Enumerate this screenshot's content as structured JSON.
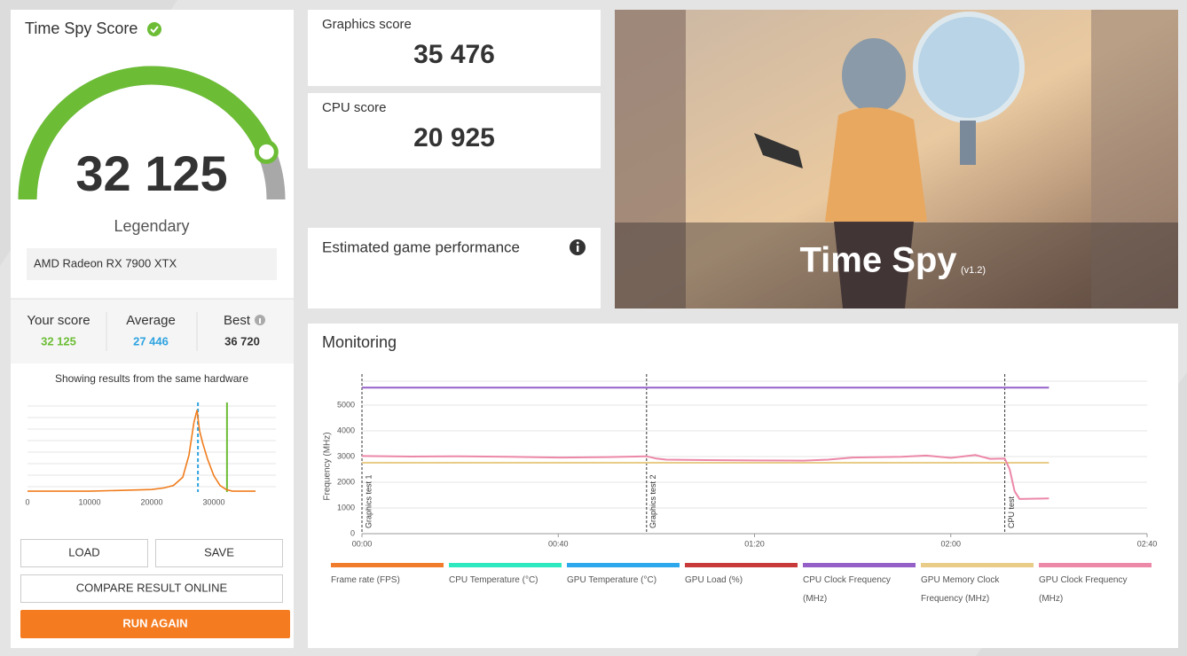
{
  "score_card": {
    "title": "Time Spy Score",
    "score": {
      "value": 32125,
      "label": "32 125"
    },
    "rank": "Legendary",
    "gpu": "AMD Radeon RX 7900 XTX"
  },
  "comparison": {
    "your_score": {
      "name": "Your score",
      "value": 32125,
      "label": "32 125"
    },
    "average": {
      "name": "Average",
      "value": 27446,
      "label": "27 446"
    },
    "best": {
      "name": "Best",
      "value": 36720,
      "label": "36 720"
    }
  },
  "distribution": {
    "type": "line",
    "caption": "Showing results from the same hardware",
    "x": [
      0,
      5000,
      10000,
      15000,
      20000,
      22000,
      23500,
      25000,
      26000,
      26800,
      27300,
      27700,
      28200,
      29000,
      30000,
      31000,
      32000,
      33000,
      36720
    ],
    "values": [
      1,
      1,
      1,
      2,
      3,
      5,
      8,
      18,
      45,
      85,
      100,
      75,
      60,
      40,
      20,
      8,
      3,
      1,
      1
    ],
    "color": "#f07c1c",
    "xlim": [
      0,
      40000
    ],
    "ylim": [
      0,
      105
    ],
    "xticks": [
      0,
      10000,
      20000,
      30000
    ]
  },
  "scores": {
    "graphics": {
      "name": "Graphics score",
      "label": "35 476"
    },
    "cpu": {
      "name": "CPU score",
      "label": "20 925"
    }
  },
  "estimated": {
    "title": "Estimated game performance"
  },
  "hero": {
    "title": "Time Spy",
    "version": "(v1.2)"
  },
  "buttons": {
    "load": "LOAD",
    "save": "SAVE",
    "compare": "COMPARE RESULT ONLINE",
    "run": "RUN AGAIN"
  },
  "monitoring": {
    "type": "line",
    "title": "Monitoring",
    "ylabel": "Frequency (MHz)",
    "xlim": [
      0,
      160
    ],
    "ylim": [
      0,
      5930
    ],
    "yticks": [
      0,
      1000,
      2000,
      3000,
      4000,
      5000
    ],
    "xticks": [
      {
        "value": 0,
        "label": "00:00"
      },
      {
        "value": 40,
        "label": "00:40"
      },
      {
        "value": 80,
        "label": "01:20"
      },
      {
        "value": 120,
        "label": "02:00"
      },
      {
        "value": 160,
        "label": "02:40"
      }
    ],
    "markers": [
      {
        "value": 0,
        "label": "Graphics test 1"
      },
      {
        "value": 58,
        "label": "Graphics test 2"
      },
      {
        "value": 131,
        "label": "CPU test"
      }
    ],
    "series": [
      {
        "name": "Frame rate (FPS)",
        "color": "#f07c2c"
      },
      {
        "name": "CPU Temperature (°C)",
        "color": "#2ee8c0"
      },
      {
        "name": "GPU Temperature (°C)",
        "color": "#2ea8ec"
      },
      {
        "name": "GPU Load (%)",
        "color": "#c83a3a"
      },
      {
        "name": "CPU Clock Frequency (MHz)",
        "color": "#9460c8",
        "x": [
          0,
          140
        ],
        "values": [
          5680,
          5680
        ]
      },
      {
        "name": "GPU Memory Clock Frequency (MHz)",
        "color": "#e8cc88",
        "x": [
          0,
          140
        ],
        "values": [
          2760,
          2760
        ]
      },
      {
        "name": "GPU Clock Frequency (MHz)",
        "color": "#ec88a8",
        "x": [
          0,
          10,
          20,
          30,
          40,
          50,
          58,
          60,
          62,
          70,
          80,
          90,
          95,
          100,
          110,
          115,
          120,
          125,
          128,
          131,
          132,
          133,
          134,
          140
        ],
        "values": [
          3020,
          3000,
          3010,
          2990,
          2960,
          2980,
          3010,
          2920,
          2880,
          2860,
          2850,
          2840,
          2880,
          2960,
          2990,
          3040,
          2950,
          3060,
          2910,
          2920,
          2500,
          1650,
          1350,
          1370
        ]
      }
    ]
  }
}
